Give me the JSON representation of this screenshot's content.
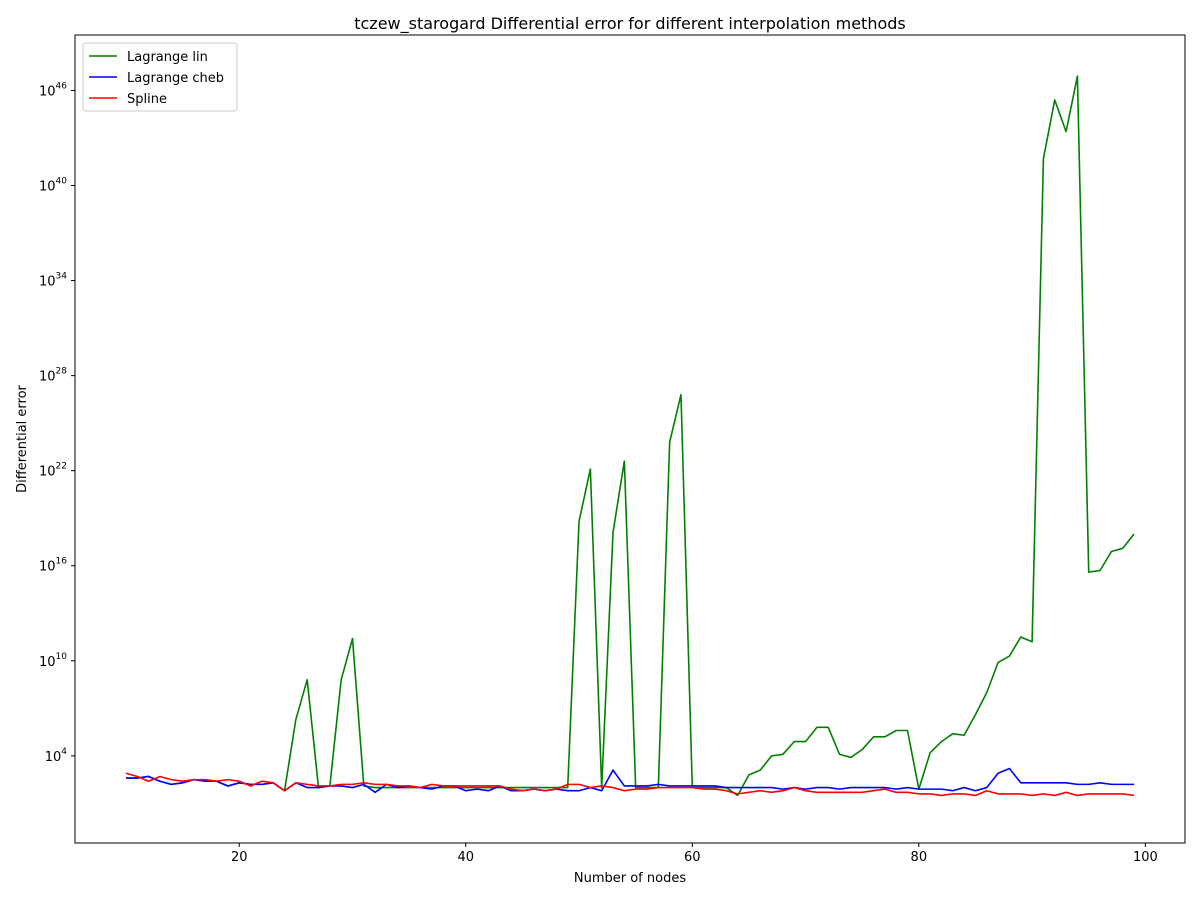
{
  "chart_data": {
    "type": "line",
    "title": "tczew_starogard Differential error for different interpolation methods",
    "xlabel": "Number of nodes",
    "ylabel": "Differential error",
    "y_scale": "log",
    "xlim": [
      5.5,
      103.5
    ],
    "ylim_log10": [
      -1.5,
      49.5
    ],
    "x_ticks": [
      20,
      40,
      60,
      80,
      100
    ],
    "y_ticks_log10": [
      4,
      10,
      16,
      22,
      28,
      34,
      40,
      46
    ],
    "grid": false,
    "legend_position": "top-left",
    "x": [
      10,
      11,
      12,
      13,
      14,
      15,
      16,
      17,
      18,
      19,
      20,
      21,
      22,
      23,
      24,
      25,
      26,
      27,
      28,
      29,
      30,
      31,
      32,
      33,
      34,
      35,
      36,
      37,
      38,
      39,
      40,
      41,
      42,
      43,
      44,
      45,
      46,
      47,
      48,
      49,
      50,
      51,
      52,
      53,
      54,
      55,
      56,
      57,
      58,
      59,
      60,
      61,
      62,
      63,
      64,
      65,
      66,
      67,
      68,
      69,
      70,
      71,
      72,
      73,
      74,
      75,
      76,
      77,
      78,
      79,
      80,
      81,
      82,
      83,
      84,
      85,
      86,
      87,
      88,
      89,
      90,
      91,
      92,
      93,
      94,
      95,
      96,
      97,
      98,
      99
    ],
    "series": [
      {
        "name": "Lagrange lin",
        "color": "#008000",
        "log10_values": [
          2.6,
          2.6,
          2.7,
          2.4,
          2.2,
          2.3,
          2.5,
          2.4,
          2.4,
          2.1,
          2.3,
          2.2,
          2.2,
          2.3,
          1.8,
          6.3,
          8.8,
          2.0,
          2.1,
          8.8,
          11.4,
          2.1,
          2.0,
          2.0,
          2.0,
          2.0,
          2.0,
          2.0,
          2.0,
          2.0,
          2.0,
          2.0,
          2.0,
          2.0,
          2.0,
          2.0,
          2.0,
          2.0,
          2.0,
          2.0,
          18.8,
          22.1,
          2.0,
          18.1,
          22.6,
          2.0,
          2.0,
          2.0,
          23.8,
          26.8,
          2.0,
          2.0,
          2.0,
          2.0,
          1.5,
          2.8,
          3.1,
          4.0,
          4.1,
          4.9,
          4.9,
          5.8,
          5.8,
          4.1,
          3.9,
          4.4,
          5.2,
          5.2,
          5.6,
          5.6,
          1.9,
          4.2,
          4.9,
          5.4,
          5.3,
          6.6,
          8.0,
          9.9,
          10.3,
          11.5,
          11.2,
          41.7,
          45.4,
          43.4,
          46.9,
          15.6,
          15.7,
          16.9,
          17.1,
          18.0
        ]
      },
      {
        "name": "Lagrange cheb",
        "color": "#0000ff",
        "log10_values": [
          2.6,
          2.6,
          2.7,
          2.4,
          2.2,
          2.3,
          2.5,
          2.4,
          2.4,
          2.1,
          2.3,
          2.2,
          2.2,
          2.3,
          1.8,
          2.3,
          2.0,
          2.0,
          2.1,
          2.1,
          2.0,
          2.2,
          1.7,
          2.2,
          2.0,
          2.1,
          2.0,
          1.9,
          2.1,
          2.1,
          1.8,
          1.9,
          1.8,
          2.1,
          1.8,
          1.8,
          1.9,
          1.8,
          1.9,
          1.8,
          1.8,
          2.0,
          1.8,
          3.1,
          2.1,
          2.1,
          2.1,
          2.2,
          2.1,
          2.1,
          2.1,
          2.1,
          2.1,
          2.0,
          2.0,
          2.0,
          2.0,
          2.0,
          1.9,
          2.0,
          1.9,
          2.0,
          2.0,
          1.9,
          2.0,
          2.0,
          2.0,
          2.0,
          1.9,
          2.0,
          1.9,
          1.9,
          1.9,
          1.8,
          2.0,
          1.8,
          2.0,
          2.9,
          3.2,
          2.3,
          2.3,
          2.3,
          2.3,
          2.3,
          2.2,
          2.2,
          2.3,
          2.2,
          2.2,
          2.2
        ]
      },
      {
        "name": "Spline",
        "color": "#ff0000",
        "log10_values": [
          2.9,
          2.7,
          2.4,
          2.7,
          2.5,
          2.4,
          2.5,
          2.5,
          2.4,
          2.5,
          2.4,
          2.1,
          2.4,
          2.3,
          1.8,
          2.3,
          2.2,
          2.1,
          2.1,
          2.2,
          2.2,
          2.3,
          2.2,
          2.2,
          2.1,
          2.1,
          2.0,
          2.2,
          2.1,
          2.1,
          2.1,
          2.1,
          2.1,
          2.1,
          1.9,
          1.8,
          1.9,
          1.8,
          1.9,
          2.2,
          2.2,
          2.0,
          2.1,
          2.0,
          1.8,
          1.9,
          1.9,
          2.0,
          2.0,
          2.0,
          2.0,
          1.9,
          1.9,
          1.8,
          1.6,
          1.7,
          1.8,
          1.7,
          1.8,
          2.0,
          1.8,
          1.7,
          1.7,
          1.7,
          1.7,
          1.7,
          1.8,
          1.9,
          1.7,
          1.7,
          1.6,
          1.6,
          1.5,
          1.6,
          1.6,
          1.5,
          1.8,
          1.6,
          1.6,
          1.6,
          1.5,
          1.6,
          1.5,
          1.7,
          1.5,
          1.6,
          1.6,
          1.6,
          1.6,
          1.5
        ]
      }
    ]
  }
}
